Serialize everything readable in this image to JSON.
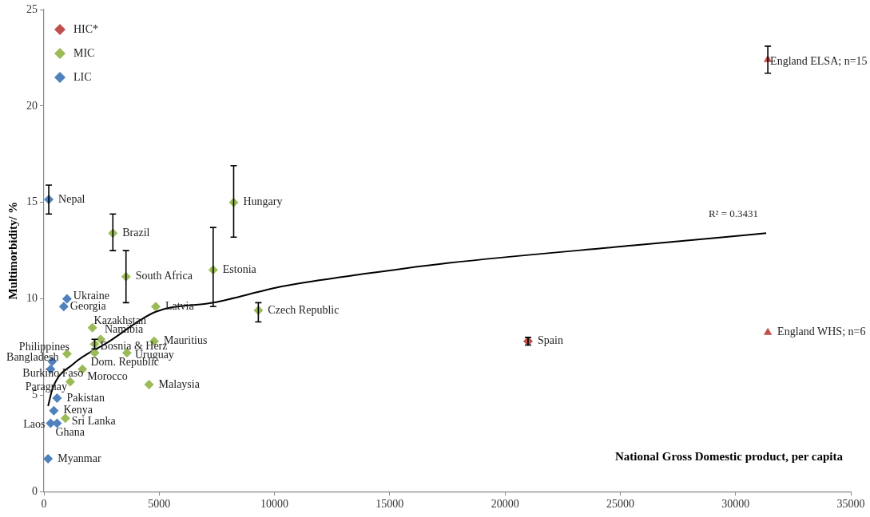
{
  "chart_data": {
    "type": "scatter",
    "xlabel": "National Gross Domestic product, per capita",
    "ylabel": "Multimorbidity/ %",
    "xlim": [
      0,
      35000
    ],
    "xticks": [
      0,
      5000,
      10000,
      15000,
      20000,
      25000,
      30000,
      35000
    ],
    "ylim": [
      0,
      25
    ],
    "yticks": [
      0,
      5,
      10,
      15,
      20,
      25
    ],
    "grid": false,
    "legend": "top left",
    "marker": "diamond",
    "series": [
      {
        "name": "HIC*",
        "color": "#c0504d",
        "x": [
          21000
        ],
        "values": [
          7.8
        ],
        "errors": [
          [
            7.6,
            8.0
          ]
        ]
      },
      {
        "color": "#c0504d",
        "marker": "triangle",
        "x": [
          31400,
          31400
        ],
        "values": [
          22.4,
          8.25
        ],
        "errors": [
          [
            21.7,
            23.1
          ],
          null
        ]
      },
      {
        "name": "MIC",
        "color": "#9bbb59",
        "x": [
          8230,
          2990,
          3560,
          7340,
          9300,
          4850,
          2100,
          2460,
          2200,
          4780,
          3600,
          2200,
          1000,
          1670,
          1140,
          4560,
          930
        ],
        "values": [
          15.0,
          13.4,
          11.15,
          11.5,
          9.4,
          9.6,
          8.5,
          7.9,
          7.65,
          7.8,
          7.2,
          7.2,
          7.15,
          6.35,
          5.7,
          5.55,
          3.8
        ],
        "errors": [
          [
            13.2,
            16.9
          ],
          [
            12.5,
            14.4
          ],
          [
            9.8,
            12.5
          ],
          [
            9.6,
            13.7
          ],
          [
            8.8,
            9.8
          ],
          null,
          null,
          null,
          [
            7.4,
            7.9
          ],
          null,
          null,
          null,
          null,
          null,
          null,
          null,
          null
        ]
      },
      {
        "name": "LIC",
        "color": "#4f81bd",
        "x": [
          210,
          1000,
          860,
          360,
          290,
          570,
          430,
          290,
          570,
          180
        ],
        "values": [
          15.15,
          10.0,
          9.6,
          6.75,
          6.35,
          4.85,
          4.2,
          3.55,
          3.55,
          1.7
        ],
        "errors": [
          [
            14.4,
            15.9
          ],
          null,
          null,
          null,
          null,
          null,
          null,
          null,
          null,
          null
        ]
      },
      {
        "type": "line",
        "color": "#000000",
        "marker": "none",
        "x": [
          180,
          390,
          1250,
          2780,
          4850,
          7340,
          10370,
          13930,
          17500,
          25590,
          31330
        ],
        "values": [
          4.44,
          5.4,
          6.6,
          7.75,
          9.33,
          9.8,
          10.65,
          11.3,
          11.85,
          12.77,
          13.4
        ]
      }
    ],
    "annotations": [
      {
        "text": "Spain",
        "x": 21000,
        "y": 7.8
      },
      {
        "text": "England ELSA; n=15",
        "x": 31400,
        "y": 22.4
      },
      {
        "text": "England WHS; n=6",
        "x": 31400,
        "y": 8.25
      },
      {
        "text": "Hungary",
        "x": 8230,
        "y": 15.0
      },
      {
        "text": "Brazil",
        "x": 2990,
        "y": 13.4
      },
      {
        "text": "South Africa",
        "x": 3560,
        "y": 11.15
      },
      {
        "text": "Estonia",
        "x": 7340,
        "y": 11.5
      },
      {
        "text": "Czech Republic",
        "x": 9300,
        "y": 9.4
      },
      {
        "text": "Latvia",
        "x": 4850,
        "y": 9.6
      },
      {
        "text": "Kazakhstan",
        "x": 2100,
        "y": 8.5
      },
      {
        "text": "Namibia",
        "x": 2460,
        "y": 7.9
      },
      {
        "text": "Bosnia & Herz",
        "x": 2200,
        "y": 7.65
      },
      {
        "text": "Mauritius",
        "x": 4780,
        "y": 7.8
      },
      {
        "text": "Uruguay",
        "x": 3600,
        "y": 7.2
      },
      {
        "text": "Dom. Republic",
        "x": 2200,
        "y": 7.2
      },
      {
        "text": "Philippines",
        "x": 1000,
        "y": 7.15
      },
      {
        "text": "Morocco",
        "x": 1670,
        "y": 6.35
      },
      {
        "text": "Paraguay",
        "x": 1140,
        "y": 5.7
      },
      {
        "text": "Malaysia",
        "x": 4560,
        "y": 5.55
      },
      {
        "text": "Sri Lanka",
        "x": 930,
        "y": 3.8
      },
      {
        "text": "Nepal",
        "x": 210,
        "y": 15.15
      },
      {
        "text": "Ukraine",
        "x": 1000,
        "y": 10.0
      },
      {
        "text": "Georgia",
        "x": 860,
        "y": 9.6
      },
      {
        "text": "Bangladesh",
        "x": 360,
        "y": 6.75
      },
      {
        "text": "Burkino Faso",
        "x": 290,
        "y": 6.35
      },
      {
        "text": "Pakistan",
        "x": 570,
        "y": 4.85
      },
      {
        "text": "Kenya",
        "x": 430,
        "y": 4.2
      },
      {
        "text": "Laos",
        "x": 290,
        "y": 3.55
      },
      {
        "text": "Ghana",
        "x": 570,
        "y": 3.55
      },
      {
        "text": "Myanmar",
        "x": 180,
        "y": 1.7
      },
      "R² = 0.3431"
    ]
  }
}
